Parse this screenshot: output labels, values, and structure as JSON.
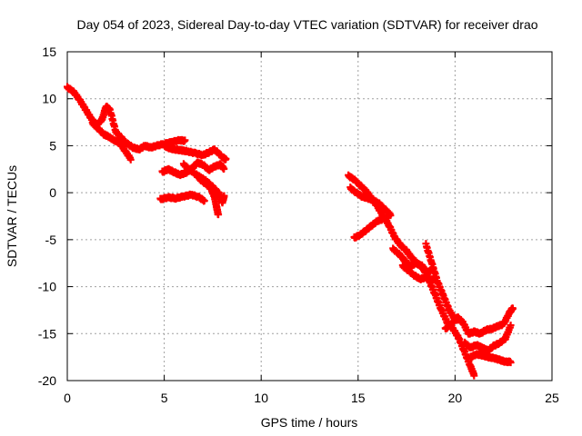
{
  "chart_data": {
    "type": "scatter",
    "title": "Day 054 of 2023, Sidereal Day-to-day VTEC variation (SDTVAR) for receiver drao",
    "xlabel": "GPS time / hours",
    "ylabel": "SDTVAR / TECUs",
    "xlim": [
      0,
      25
    ],
    "ylim": [
      -20,
      15
    ],
    "x_ticks": [
      0,
      5,
      10,
      15,
      20,
      25
    ],
    "y_ticks": [
      -20,
      -15,
      -10,
      -5,
      0,
      5,
      10,
      15
    ],
    "x_tick_labels": [
      "0",
      "5",
      "10",
      "15",
      "20",
      "25"
    ],
    "y_tick_labels": [
      "-20",
      "-15",
      "-10",
      "-5",
      "0",
      "5",
      "10",
      "15"
    ],
    "grid": true,
    "marker": "+",
    "series": [
      {
        "color": "#ff0000",
        "tracks": [
          {
            "x": [
              0.0,
              0.3,
              0.6,
              0.9,
              1.2,
              1.5,
              1.8,
              2.0,
              2.2,
              2.5,
              2.8,
              3.1,
              3.4,
              3.7,
              4.0,
              4.3,
              4.6,
              5.0,
              5.4,
              5.8,
              6.1
            ],
            "y": [
              11.2,
              10.8,
              10.0,
              9.0,
              8.0,
              7.2,
              7.8,
              9.2,
              8.8,
              6.5,
              5.8,
              5.2,
              4.8,
              4.6,
              5.0,
              4.8,
              5.0,
              5.2,
              5.4,
              5.6,
              5.5
            ]
          },
          {
            "x": [
              1.3,
              1.6,
              1.9,
              2.1,
              2.4,
              2.7,
              3.0,
              3.3
            ],
            "y": [
              7.4,
              6.8,
              6.2,
              6.0,
              5.6,
              5.3,
              4.4,
              3.5
            ]
          },
          {
            "x": [
              5.0,
              5.3,
              5.6,
              5.9,
              6.2,
              6.6,
              7.0,
              7.3,
              7.6,
              8.0,
              8.2
            ],
            "y": [
              5.0,
              4.7,
              4.6,
              4.5,
              4.4,
              4.2,
              4.0,
              4.3,
              4.6,
              3.8,
              3.5
            ]
          },
          {
            "x": [
              4.9,
              5.2,
              5.5,
              5.8,
              6.1,
              6.4,
              6.7,
              7.0,
              7.3,
              7.6,
              7.9,
              8.1
            ],
            "y": [
              2.2,
              2.5,
              2.2,
              1.9,
              2.1,
              2.5,
              3.2,
              3.0,
              2.4,
              2.8,
              3.0,
              2.5
            ]
          },
          {
            "x": [
              6.0,
              6.3,
              6.6,
              6.9,
              7.2,
              7.5,
              7.8,
              8.0,
              8.1
            ],
            "y": [
              3.0,
              2.5,
              2.0,
              1.6,
              1.2,
              0.6,
              0.0,
              -1.0,
              -0.3
            ]
          },
          {
            "x": [
              6.8,
              7.1,
              7.4,
              7.6,
              7.7,
              7.8
            ],
            "y": [
              1.5,
              1.0,
              0.5,
              -0.5,
              -1.5,
              -2.5
            ]
          },
          {
            "x": [
              4.8,
              5.2,
              5.6,
              6.0,
              6.4,
              6.8,
              7.1
            ],
            "y": [
              -0.7,
              -0.5,
              -0.6,
              -0.4,
              -0.2,
              -0.5,
              -0.9
            ]
          },
          {
            "x": [
              14.5,
              14.8,
              15.1,
              15.4,
              15.7,
              16.0,
              16.3,
              16.6,
              16.9,
              17.2,
              17.5,
              17.8,
              18.1,
              18.4,
              18.7,
              19.0,
              19.3,
              19.6,
              19.9,
              20.2,
              20.5,
              20.8,
              21.0
            ],
            "y": [
              1.8,
              1.4,
              0.8,
              0.2,
              -0.6,
              -1.5,
              -2.5,
              -3.5,
              -4.8,
              -5.6,
              -6.2,
              -7.0,
              -7.6,
              -8.2,
              -9.5,
              -11.0,
              -12.5,
              -13.8,
              -14.5,
              -15.5,
              -17.0,
              -18.5,
              -19.5
            ]
          },
          {
            "x": [
              14.6,
              14.9,
              15.2,
              15.5,
              15.8,
              16.1,
              16.4,
              16.7
            ],
            "y": [
              0.5,
              0.0,
              -0.4,
              -0.6,
              -0.8,
              -1.2,
              -1.8,
              -2.4
            ]
          },
          {
            "x": [
              14.8,
              15.1,
              15.4,
              15.7,
              16.0,
              16.3,
              16.6
            ],
            "y": [
              -4.8,
              -4.5,
              -4.0,
              -3.5,
              -3.0,
              -2.8,
              -2.5
            ]
          },
          {
            "x": [
              16.8,
              17.1,
              17.4,
              17.7,
              18.0,
              18.3,
              18.6,
              18.9
            ],
            "y": [
              -6.0,
              -6.5,
              -7.2,
              -7.8,
              -7.5,
              -7.8,
              -8.5,
              -8.0
            ]
          },
          {
            "x": [
              17.3,
              17.6,
              17.9,
              18.2,
              18.5,
              18.8,
              19.0
            ],
            "y": [
              -7.8,
              -8.3,
              -8.8,
              -9.2,
              -9.0,
              -9.3,
              -9.0
            ]
          },
          {
            "x": [
              18.5,
              18.8,
              19.1,
              19.4,
              19.7,
              20.0,
              20.3
            ],
            "y": [
              -5.5,
              -7.5,
              -9.5,
              -11.0,
              -12.5,
              -13.5,
              -13.5
            ]
          },
          {
            "x": [
              19.5,
              19.8,
              20.1,
              20.4,
              20.7,
              21.0,
              21.3,
              21.6,
              21.9,
              22.2,
              22.5,
              22.8,
              23.0
            ],
            "y": [
              -14.5,
              -14.0,
              -13.2,
              -13.8,
              -15.0,
              -14.8,
              -15.0,
              -14.6,
              -14.5,
              -14.2,
              -14.0,
              -12.8,
              -12.2
            ]
          },
          {
            "x": [
              20.5,
              20.8,
              21.1,
              21.4,
              21.7,
              22.0,
              22.3,
              22.6,
              22.9
            ],
            "y": [
              -16.0,
              -16.5,
              -16.2,
              -16.5,
              -16.8,
              -16.3,
              -16.0,
              -15.5,
              -14.0
            ]
          },
          {
            "x": [
              20.8,
              21.1,
              21.4,
              21.7,
              22.0,
              22.3,
              22.6,
              22.9
            ],
            "y": [
              -17.5,
              -17.2,
              -17.3,
              -17.5,
              -17.6,
              -17.8,
              -18.0,
              -18.0
            ]
          }
        ]
      }
    ]
  }
}
